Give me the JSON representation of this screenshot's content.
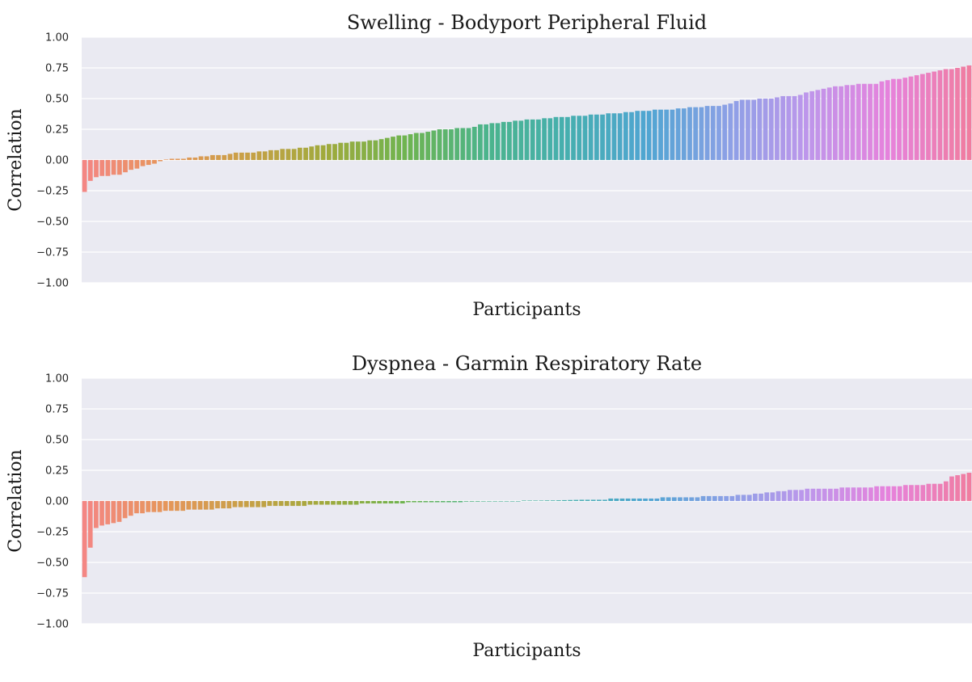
{
  "chart_data": [
    {
      "type": "bar",
      "title": "Swelling - Bodyport Peripheral Fluid",
      "xlabel": "Participants",
      "ylabel": "Correlation",
      "ylim": [
        -1.0,
        1.0
      ],
      "yticks": [
        "1.00",
        "0.75",
        "0.50",
        "0.25",
        "0.00",
        "−0.25",
        "−0.50",
        "−0.75",
        "−1.00"
      ],
      "ytick_values": [
        1.0,
        0.75,
        0.5,
        0.25,
        0.0,
        -0.25,
        -0.5,
        -0.75,
        -1.0
      ],
      "grid": true,
      "values": [
        -0.26,
        -0.17,
        -0.14,
        -0.13,
        -0.13,
        -0.12,
        -0.12,
        -0.1,
        -0.08,
        -0.07,
        -0.05,
        -0.04,
        -0.03,
        -0.01,
        0.0,
        0.01,
        0.01,
        0.01,
        0.02,
        0.02,
        0.03,
        0.03,
        0.04,
        0.04,
        0.04,
        0.05,
        0.06,
        0.06,
        0.06,
        0.06,
        0.07,
        0.07,
        0.08,
        0.08,
        0.09,
        0.09,
        0.09,
        0.1,
        0.1,
        0.11,
        0.12,
        0.12,
        0.13,
        0.13,
        0.14,
        0.14,
        0.15,
        0.15,
        0.15,
        0.16,
        0.16,
        0.17,
        0.18,
        0.19,
        0.2,
        0.2,
        0.21,
        0.22,
        0.22,
        0.23,
        0.24,
        0.25,
        0.25,
        0.25,
        0.26,
        0.26,
        0.26,
        0.27,
        0.29,
        0.29,
        0.3,
        0.3,
        0.31,
        0.31,
        0.32,
        0.32,
        0.33,
        0.33,
        0.33,
        0.34,
        0.34,
        0.35,
        0.35,
        0.35,
        0.36,
        0.36,
        0.36,
        0.37,
        0.37,
        0.37,
        0.38,
        0.38,
        0.38,
        0.39,
        0.39,
        0.4,
        0.4,
        0.4,
        0.41,
        0.41,
        0.41,
        0.41,
        0.42,
        0.42,
        0.43,
        0.43,
        0.43,
        0.44,
        0.44,
        0.44,
        0.45,
        0.46,
        0.48,
        0.49,
        0.49,
        0.49,
        0.5,
        0.5,
        0.5,
        0.51,
        0.52,
        0.52,
        0.52,
        0.53,
        0.55,
        0.56,
        0.57,
        0.58,
        0.59,
        0.6,
        0.6,
        0.61,
        0.61,
        0.62,
        0.62,
        0.62,
        0.62,
        0.64,
        0.65,
        0.66,
        0.66,
        0.67,
        0.68,
        0.69,
        0.7,
        0.71,
        0.72,
        0.73,
        0.74,
        0.74,
        0.75,
        0.76,
        0.77
      ]
    },
    {
      "type": "bar",
      "title": "Dyspnea - Garmin Respiratory Rate",
      "xlabel": "Participants",
      "ylabel": "Correlation",
      "ylim": [
        -1.0,
        1.0
      ],
      "yticks": [
        "1.00",
        "0.75",
        "0.50",
        "0.25",
        "0.00",
        "−0.25",
        "−0.50",
        "−0.75",
        "−1.00"
      ],
      "ytick_values": [
        1.0,
        0.75,
        0.5,
        0.25,
        0.0,
        -0.25,
        -0.5,
        -0.75,
        -1.0
      ],
      "grid": true,
      "values": [
        -0.62,
        -0.38,
        -0.22,
        -0.2,
        -0.19,
        -0.18,
        -0.17,
        -0.14,
        -0.12,
        -0.1,
        -0.1,
        -0.09,
        -0.09,
        -0.09,
        -0.08,
        -0.08,
        -0.08,
        -0.08,
        -0.07,
        -0.07,
        -0.07,
        -0.07,
        -0.07,
        -0.06,
        -0.06,
        -0.06,
        -0.05,
        -0.05,
        -0.05,
        -0.05,
        -0.05,
        -0.05,
        -0.04,
        -0.04,
        -0.04,
        -0.04,
        -0.04,
        -0.04,
        -0.04,
        -0.03,
        -0.03,
        -0.03,
        -0.03,
        -0.03,
        -0.03,
        -0.03,
        -0.03,
        -0.03,
        -0.02,
        -0.02,
        -0.02,
        -0.02,
        -0.02,
        -0.02,
        -0.02,
        -0.02,
        -0.01,
        -0.01,
        -0.01,
        -0.01,
        -0.01,
        -0.01,
        -0.01,
        -0.01,
        -0.01,
        -0.01,
        -0.005,
        -0.005,
        -0.005,
        -0.004,
        -0.004,
        -0.003,
        -0.003,
        -0.002,
        -0.002,
        -0.001,
        0.001,
        0.002,
        0.003,
        0.004,
        0.005,
        0.005,
        0.006,
        0.007,
        0.008,
        0.009,
        0.01,
        0.01,
        0.01,
        0.01,
        0.01,
        0.02,
        0.02,
        0.02,
        0.02,
        0.02,
        0.02,
        0.02,
        0.02,
        0.02,
        0.03,
        0.03,
        0.03,
        0.03,
        0.03,
        0.03,
        0.03,
        0.04,
        0.04,
        0.04,
        0.04,
        0.04,
        0.04,
        0.05,
        0.05,
        0.05,
        0.06,
        0.06,
        0.07,
        0.07,
        0.08,
        0.08,
        0.09,
        0.09,
        0.09,
        0.1,
        0.1,
        0.1,
        0.1,
        0.1,
        0.1,
        0.11,
        0.11,
        0.11,
        0.11,
        0.11,
        0.11,
        0.12,
        0.12,
        0.12,
        0.12,
        0.12,
        0.13,
        0.13,
        0.13,
        0.13,
        0.14,
        0.14,
        0.14,
        0.16,
        0.2,
        0.21,
        0.22,
        0.23
      ]
    }
  ]
}
